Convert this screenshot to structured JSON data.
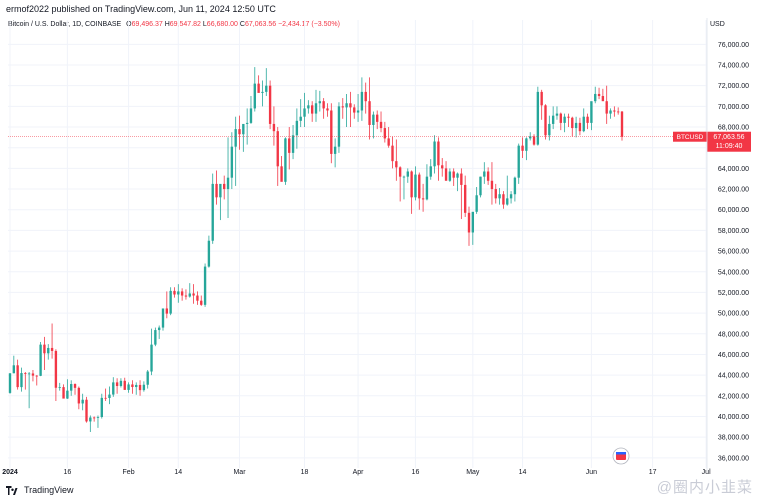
{
  "header": {
    "text": "ermof2022 published on TradingView.com, Jun 11, 2024 12:50 UTC"
  },
  "legend": {
    "symbol": "Bitcoin / U.S. Dollar, 1D, COINBASE",
    "o_label": "O",
    "o_value": "69,496.37",
    "h_label": "H",
    "h_value": "69,547.82",
    "l_label": "L",
    "l_value": "66,680.00",
    "c_label": "C",
    "c_value": "67,063.56",
    "change": "−2,434.17 (−3.50%)"
  },
  "axis": {
    "currency": "USD"
  },
  "price_tag": {
    "symbol": "BTCUSD",
    "price": "67,063.56",
    "countdown": "11:09:40"
  },
  "footer": {
    "brand": "TradingView"
  },
  "watermark": {
    "text": "@圈内小韭菜"
  },
  "colors": {
    "up": "#26a69a",
    "down": "#f23645",
    "grid": "#f0f3fa",
    "axis_text": "#131722"
  },
  "chart_data": {
    "type": "candlestick",
    "title": "Bitcoin / U.S. Dollar, 1D, COINBASE",
    "ylabel": "USD",
    "ylim": [
      35500,
      77000
    ],
    "grid": true,
    "y_ticks": [
      "76,000.00",
      "74,000.00",
      "72,000.00",
      "70,000.00",
      "68,000.00",
      "66,000.00",
      "64,000.00",
      "62,000.00",
      "60,000.00",
      "58,000.00",
      "56,000.00",
      "54,000.00",
      "52,000.00",
      "50,000.00",
      "48,000.00",
      "46,000.00",
      "44,000.00",
      "42,000.00",
      "40,000.00",
      "38,000.00",
      "36,000.00"
    ],
    "y_tick_values": [
      76000,
      74000,
      72000,
      70000,
      68000,
      66000,
      64000,
      62000,
      60000,
      58000,
      56000,
      54000,
      52000,
      50000,
      48000,
      46000,
      44000,
      42000,
      40000,
      38000,
      36000
    ],
    "x_labels": [
      {
        "label": "2024",
        "index": 0
      },
      {
        "label": "16",
        "index": 15
      },
      {
        "label": "Feb",
        "index": 31
      },
      {
        "label": "14",
        "index": 44
      },
      {
        "label": "Mar",
        "index": 60
      },
      {
        "label": "18",
        "index": 77
      },
      {
        "label": "Apr",
        "index": 91
      },
      {
        "label": "16",
        "index": 106
      },
      {
        "label": "May",
        "index": 121
      },
      {
        "label": "14",
        "index": 134
      },
      {
        "label": "Jun",
        "index": 152
      },
      {
        "label": "17",
        "index": 168
      },
      {
        "label": "Jul",
        "index": 182
      }
    ],
    "x_index_max": 186,
    "last_price": 67063.56,
    "ohlc": [
      [
        42280,
        44180,
        42200,
        44180
      ],
      [
        44180,
        45880,
        44180,
        44950
      ],
      [
        44950,
        45500,
        42600,
        42840
      ],
      [
        42840,
        44730,
        42400,
        44200
      ],
      [
        44200,
        44300,
        42600,
        44150
      ],
      [
        44150,
        44300,
        40800,
        44160
      ],
      [
        44160,
        44500,
        43400,
        43950
      ],
      [
        43950,
        44000,
        43000,
        43930
      ],
      [
        43930,
        47200,
        43900,
        46950
      ],
      [
        46950,
        47700,
        44500,
        46110
      ],
      [
        46110,
        47000,
        45500,
        46630
      ],
      [
        46630,
        49000,
        45600,
        46340
      ],
      [
        46340,
        46500,
        41500,
        42780
      ],
      [
        42780,
        43250,
        42500,
        42840
      ],
      [
        42840,
        43100,
        41800,
        41730
      ],
      [
        41730,
        43600,
        41700,
        42500
      ],
      [
        42500,
        43500,
        42000,
        43140
      ],
      [
        43140,
        43200,
        42100,
        42770
      ],
      [
        42770,
        42900,
        40700,
        41260
      ],
      [
        41260,
        42200,
        40600,
        41620
      ],
      [
        41620,
        41900,
        39400,
        39520
      ],
      [
        39520,
        40100,
        38500,
        39900
      ],
      [
        39900,
        40000,
        39500,
        39880
      ],
      [
        39880,
        40100,
        38900,
        39950
      ],
      [
        39950,
        42200,
        39800,
        41800
      ],
      [
        41800,
        42700,
        41500,
        41790
      ],
      [
        41790,
        42900,
        41200,
        42120
      ],
      [
        42120,
        43800,
        41900,
        43300
      ],
      [
        43300,
        43700,
        42200,
        42950
      ],
      [
        42950,
        43700,
        42800,
        43450
      ],
      [
        43450,
        43750,
        42600,
        42570
      ],
      [
        42570,
        43300,
        42300,
        43100
      ],
      [
        43100,
        43500,
        42200,
        42850
      ],
      [
        42850,
        43300,
        42100,
        43050
      ],
      [
        43050,
        43500,
        42000,
        42550
      ],
      [
        42550,
        43400,
        42400,
        43070
      ],
      [
        43070,
        44500,
        42700,
        44350
      ],
      [
        44350,
        48500,
        44000,
        46950
      ],
      [
        46950,
        48600,
        46800,
        48360
      ],
      [
        48360,
        48800,
        47500,
        48600
      ],
      [
        48600,
        50300,
        48300,
        50450
      ],
      [
        50450,
        52100,
        49500,
        49950
      ],
      [
        49950,
        52500,
        49800,
        52150
      ],
      [
        52150,
        52500,
        51500,
        51800
      ],
      [
        51800,
        52800,
        51000,
        52100
      ],
      [
        52100,
        52400,
        51200,
        51700
      ],
      [
        51700,
        52300,
        51300,
        51600
      ],
      [
        51600,
        52900,
        51500,
        51900
      ],
      [
        51900,
        52800,
        50900,
        51700
      ],
      [
        51700,
        52100,
        50800,
        51200
      ],
      [
        51200,
        51700,
        50700,
        50800
      ],
      [
        50800,
        54800,
        50600,
        54500
      ],
      [
        54500,
        57500,
        54400,
        57000
      ],
      [
        57000,
        63500,
        56700,
        62500
      ],
      [
        62500,
        63800,
        60500,
        61200
      ],
      [
        61200,
        62400,
        59000,
        62500
      ],
      [
        62500,
        63300,
        61000,
        62000
      ],
      [
        62000,
        67000,
        59200,
        63100
      ],
      [
        63100,
        67500,
        62000,
        66100
      ],
      [
        66100,
        69000,
        62300,
        67800
      ],
      [
        67800,
        69100,
        65800,
        67300
      ],
      [
        67300,
        68100,
        65600,
        68300
      ],
      [
        68300,
        69800,
        66300,
        68400
      ],
      [
        68400,
        71000,
        68300,
        69800
      ],
      [
        69800,
        73800,
        69500,
        72200
      ],
      [
        72200,
        73000,
        71500,
        71300
      ],
      [
        71300,
        72500,
        70000,
        71400
      ],
      [
        71400,
        73700,
        71000,
        72000
      ],
      [
        72000,
        72500,
        67800,
        68300
      ],
      [
        68300,
        70000,
        66200,
        67600
      ],
      [
        67600,
        68000,
        62300,
        64200
      ],
      [
        64200,
        65200,
        62800,
        62700
      ],
      [
        62700,
        67000,
        62400,
        66900
      ],
      [
        66900,
        68000,
        63900,
        65500
      ],
      [
        65500,
        68200,
        64900,
        67200
      ],
      [
        67200,
        69800,
        65900,
        68600
      ],
      [
        68600,
        70700,
        68000,
        69000
      ],
      [
        69000,
        71300,
        68000,
        69800
      ],
      [
        69800,
        70600,
        69300,
        70100
      ],
      [
        70100,
        70500,
        68500,
        69300
      ],
      [
        69300,
        71600,
        68500,
        70300
      ],
      [
        70300,
        71500,
        69500,
        70500
      ],
      [
        70500,
        70800,
        68800,
        69800
      ],
      [
        69800,
        70300,
        69000,
        69600
      ],
      [
        69600,
        70300,
        64500,
        65400
      ],
      [
        65400,
        66900,
        64100,
        66100
      ],
      [
        66100,
        70400,
        65500,
        70000
      ],
      [
        70000,
        70800,
        68800,
        69900
      ],
      [
        69900,
        71200,
        68000,
        70300
      ],
      [
        70300,
        71400,
        68000,
        69900
      ],
      [
        69900,
        70200,
        68800,
        69400
      ],
      [
        69400,
        71200,
        68500,
        69600
      ],
      [
        69600,
        72800,
        68600,
        71400
      ],
      [
        71400,
        72300,
        69300,
        70500
      ],
      [
        70500,
        72800,
        66800,
        68200
      ],
      [
        68200,
        69500,
        66900,
        69200
      ],
      [
        69200,
        69600,
        67800,
        68500
      ],
      [
        68500,
        69500,
        67500,
        67900
      ],
      [
        67900,
        68500,
        66500,
        66900
      ],
      [
        66900,
        68000,
        66000,
        66200
      ],
      [
        66200,
        67100,
        64000,
        64700
      ],
      [
        64700,
        66800,
        62800,
        64100
      ],
      [
        64100,
        64200,
        60800,
        63200
      ],
      [
        63200,
        63300,
        61000,
        63200
      ],
      [
        63200,
        64000,
        62600,
        63700
      ],
      [
        63700,
        63800,
        59600,
        61200
      ],
      [
        61200,
        64200,
        60900,
        63400
      ],
      [
        63400,
        63600,
        60000,
        61100
      ],
      [
        61100,
        62500,
        59800,
        61000
      ],
      [
        61000,
        64400,
        60900,
        63200
      ],
      [
        63200,
        64900,
        62900,
        64200
      ],
      [
        64200,
        67200,
        63500,
        66600
      ],
      [
        66600,
        67000,
        62800,
        64300
      ],
      [
        64300,
        65000,
        63200,
        64000
      ],
      [
        64000,
        64700,
        62900,
        62800
      ],
      [
        62800,
        64000,
        62700,
        63700
      ],
      [
        63700,
        64000,
        62300,
        63100
      ],
      [
        63100,
        63600,
        61800,
        63500
      ],
      [
        63500,
        64000,
        59100,
        62400
      ],
      [
        62400,
        63300,
        59300,
        59700
      ],
      [
        59700,
        60300,
        56500,
        57800
      ],
      [
        57800,
        59700,
        56600,
        59800
      ],
      [
        59800,
        62200,
        59600,
        61400
      ],
      [
        61400,
        63200,
        61200,
        63200
      ],
      [
        63200,
        64600,
        62500,
        63700
      ],
      [
        63700,
        64100,
        62400,
        62800
      ],
      [
        62800,
        64600,
        60500,
        62000
      ],
      [
        62000,
        62500,
        60600,
        61100
      ],
      [
        61100,
        62100,
        60500,
        61500
      ],
      [
        61500,
        61800,
        60100,
        60500
      ],
      [
        60500,
        63300,
        60400,
        61100
      ],
      [
        61100,
        61800,
        60600,
        61500
      ],
      [
        61500,
        63200,
        60800,
        63100
      ],
      [
        63100,
        66400,
        62500,
        66200
      ],
      [
        66200,
        67000,
        65000,
        65700
      ],
      [
        65700,
        67000,
        64800,
        66900
      ],
      [
        66900,
        67500,
        66700,
        67100
      ],
      [
        67100,
        67300,
        66200,
        66300
      ],
      [
        66300,
        71900,
        66200,
        71400
      ],
      [
        71400,
        71600,
        68700,
        70100
      ],
      [
        70100,
        70200,
        66800,
        67200
      ],
      [
        67200,
        69100,
        66700,
        68300
      ],
      [
        68300,
        70000,
        67800,
        69100
      ],
      [
        69100,
        70000,
        68700,
        69300
      ],
      [
        69300,
        69400,
        67700,
        68400
      ],
      [
        68400,
        69300,
        67500,
        69000
      ],
      [
        69000,
        69300,
        68000,
        68900
      ],
      [
        68900,
        69000,
        67100,
        67900
      ],
      [
        67900,
        69000,
        67000,
        68400
      ],
      [
        68400,
        68900,
        67200,
        67600
      ],
      [
        67600,
        69800,
        67500,
        69000
      ],
      [
        69000,
        69300,
        67800,
        68400
      ],
      [
        68400,
        70300,
        67700,
        70500
      ],
      [
        70500,
        71900,
        70300,
        71200
      ],
      [
        71200,
        71800,
        70700,
        71000
      ],
      [
        71000,
        71700,
        70600,
        70500
      ],
      [
        70500,
        72000,
        68300,
        69300
      ],
      [
        69300,
        69800,
        68800,
        69600
      ],
      [
        69600,
        70000,
        69000,
        69500
      ],
      [
        69500,
        69900,
        69200,
        69460
      ],
      [
        69496,
        69548,
        66680,
        67064
      ]
    ]
  }
}
